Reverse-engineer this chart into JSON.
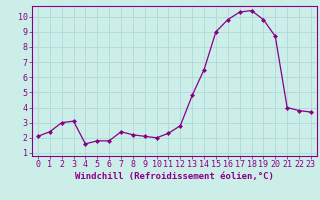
{
  "x": [
    0,
    1,
    2,
    3,
    4,
    5,
    6,
    7,
    8,
    9,
    10,
    11,
    12,
    13,
    14,
    15,
    16,
    17,
    18,
    19,
    20,
    21,
    22,
    23
  ],
  "y": [
    2.1,
    2.4,
    3.0,
    3.1,
    1.6,
    1.8,
    1.8,
    2.4,
    2.2,
    2.1,
    2.0,
    2.3,
    2.8,
    4.8,
    6.5,
    9.0,
    9.8,
    10.3,
    10.4,
    9.8,
    8.7,
    4.0,
    3.8,
    3.7
  ],
  "xlabel": "Windchill (Refroidissement éolien,°C)",
  "line_color": "#880088",
  "marker_color": "#880088",
  "bg_color": "#cceee8",
  "grid_color": "#b0d8d8",
  "xlim": [
    -0.5,
    23.5
  ],
  "ylim": [
    0.8,
    10.7
  ],
  "xticks": [
    0,
    1,
    2,
    3,
    4,
    5,
    6,
    7,
    8,
    9,
    10,
    11,
    12,
    13,
    14,
    15,
    16,
    17,
    18,
    19,
    20,
    21,
    22,
    23
  ],
  "yticks": [
    1,
    2,
    3,
    4,
    5,
    6,
    7,
    8,
    9,
    10
  ],
  "xlabel_fontsize": 6.5,
  "tick_fontsize": 6.0,
  "border_color": "#880088"
}
